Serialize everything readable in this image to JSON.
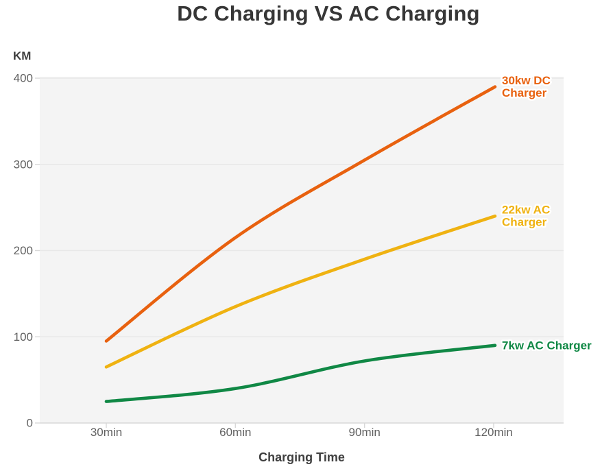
{
  "title": "DC Charging VS AC Charging",
  "colors": {
    "title": "#363636",
    "plot_bg": "#f4f4f4",
    "gridline": "#e8e8e8",
    "axis_line": "#d8d8d8",
    "tick_mark": "#d8d8d8",
    "tick_label": "#616161",
    "axis_title": "#3f3f3f"
  },
  "chart_data": {
    "type": "line",
    "categories": [
      "30min",
      "60min",
      "90min",
      "120min"
    ],
    "series": [
      {
        "name": "30kw DC Charger",
        "label_lines": [
          "30kw DC",
          "Charger"
        ],
        "color": "#e8610f",
        "values": [
          95,
          215,
          305,
          390
        ]
      },
      {
        "name": "22kw AC Charger",
        "label_lines": [
          "22kw AC",
          "Charger"
        ],
        "color": "#efb211",
        "values": [
          65,
          135,
          190,
          240
        ]
      },
      {
        "name": "7kw AC Charger",
        "label_lines": [
          "7kw AC Charger"
        ],
        "color": "#108845",
        "values": [
          25,
          40,
          72,
          90
        ]
      }
    ],
    "xlabel": "Charging Time",
    "ylabel": "KM",
    "ylim": [
      0,
      400
    ],
    "yticks": [
      0,
      100,
      200,
      300,
      400
    ],
    "grid": true,
    "legend_position": "line-end-labels"
  }
}
